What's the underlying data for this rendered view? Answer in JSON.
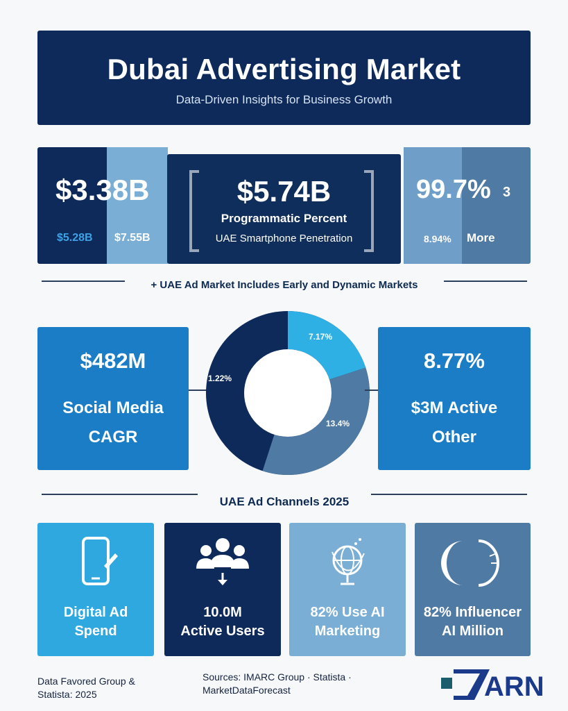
{
  "header": {
    "title": "Dubai Advertising Market",
    "subtitle": "Data-Driven Insights for Business Growth"
  },
  "stats": {
    "left_value": "$3.38B",
    "left_sub1": "$5.28B",
    "left_sub2": "$7.55B",
    "mid_value": "$5.74B",
    "mid_label1": "Programmatic Percent",
    "mid_label2": "UAE Smartphone Penetration",
    "right_value": "99.7%",
    "right_extra": "3",
    "right_sub1": "8.94%",
    "right_sub2": "More"
  },
  "section1": {
    "title": "+ UAE Ad Market Includes Early and Dynamic Markets"
  },
  "left_card": {
    "value": "$482M",
    "label1": "Social Media",
    "label2": "CAGR"
  },
  "right_card": {
    "value": "8.77%",
    "label1": "$3M Active",
    "label2": "Other"
  },
  "donut": {
    "segments": [
      {
        "label": "7.17%",
        "value": 7.17,
        "color": "#2fb0e4"
      },
      {
        "label": "13.4%",
        "value": 13.4,
        "color": "#4f7aa4"
      },
      {
        "label": "1.22%",
        "value": 1.22,
        "color": "#0d2a5a"
      }
    ]
  },
  "section2": {
    "title": "UAE Ad Channels 2025"
  },
  "channels": [
    {
      "line1": "Digital Ad",
      "line2": "Spend",
      "icon": "smartphone-icon"
    },
    {
      "line1": "10.0M",
      "line2": "Active Users",
      "icon": "users-icon"
    },
    {
      "line1": "82% Use AI",
      "line2": "Marketing",
      "icon": "globe-icon"
    },
    {
      "line1": "82% Influencer",
      "line2": "AI Million",
      "icon": "crescent-icon"
    }
  ],
  "footer": {
    "left_line1": "Data Favored Group &",
    "left_line2": "Statista: 2025",
    "mid_line1": "Sources: IMARC Group · Statista ·",
    "mid_line2": "MarketDataForecast",
    "logo_text": "ARN"
  },
  "colors": {
    "navy": "#0d2a5a",
    "blue": "#1b7dc6",
    "cyan": "#2fa8e0",
    "light_blue": "#7aaed5",
    "steel": "#4f7aa4"
  }
}
